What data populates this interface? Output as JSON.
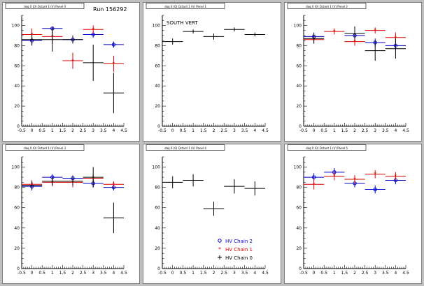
{
  "colors": {
    "hv_chain_2": "#0000cc",
    "hv_chain_1": "#dd0000",
    "hv_chain_0": "#000000",
    "pad_border": "#808080",
    "background": "#bfbfbf"
  },
  "run_label": "Run 156292",
  "legend": [
    {
      "label": "HV Chain 2",
      "marker": "circle",
      "color": "#0000cc"
    },
    {
      "label": "HV Chain 1",
      "marker": "star",
      "color": "#dd0000"
    },
    {
      "label": "HV Chain 0",
      "marker": "cross",
      "color": "#000000"
    }
  ],
  "chart_data": [
    {
      "type": "scatter",
      "title": "daq 0 (0) Octant 1 (V) Panel 0",
      "xlim": [
        -0.5,
        4.5
      ],
      "ylim": [
        0,
        110
      ],
      "xticks": [
        "-0.5",
        "0",
        "0.5",
        "1",
        "1.5",
        "2",
        "2.5",
        "3",
        "3.5",
        "4",
        "4.5"
      ],
      "yticks": [
        "0",
        "20",
        "40",
        "60",
        "80",
        "100"
      ],
      "annotation": "Run 156292",
      "series": [
        {
          "name": "HV Chain 2",
          "color": "#0000cc",
          "marker": "circle",
          "points": [
            {
              "x": 0,
              "y": 85,
              "err": 4
            },
            {
              "x": 1,
              "y": 97,
              "err": 2
            },
            {
              "x": 2,
              "y": 86,
              "err": 3
            },
            {
              "x": 3,
              "y": 91,
              "err": 3
            },
            {
              "x": 4,
              "y": 81,
              "err": 3
            }
          ]
        },
        {
          "name": "HV Chain 1",
          "color": "#dd0000",
          "marker": "star",
          "points": [
            {
              "x": 0,
              "y": 91,
              "err": 6
            },
            {
              "x": 1,
              "y": 89,
              "err": 7
            },
            {
              "x": 2,
              "y": 65,
              "err": 8
            },
            {
              "x": 3,
              "y": 96,
              "err": 4
            },
            {
              "x": 4,
              "y": 62,
              "err": 8
            }
          ]
        },
        {
          "name": "HV Chain 0",
          "color": "#000000",
          "marker": "cross",
          "points": [
            {
              "x": 0,
              "y": 86,
              "err": 6
            },
            {
              "x": 1,
              "y": 86,
              "err": 12
            },
            {
              "x": 2,
              "y": 86,
              "err": 4
            },
            {
              "x": 3,
              "y": 63,
              "err": 18
            },
            {
              "x": 4,
              "y": 33,
              "err": 20
            }
          ]
        }
      ]
    },
    {
      "type": "scatter",
      "title": "daq 0 (0) Octant 1 (V) Panel 1",
      "xlim": [
        -0.5,
        4.5
      ],
      "ylim": [
        0,
        110
      ],
      "xticks": [
        "-0.5",
        "0",
        "0.5",
        "1",
        "1.5",
        "2",
        "2.5",
        "3",
        "3.5",
        "4",
        "4.5"
      ],
      "yticks": [
        "0",
        "20",
        "40",
        "60",
        "80",
        "100"
      ],
      "annotation": "SOUTH VERT",
      "series": [
        {
          "name": "HV Chain 0",
          "color": "#000000",
          "marker": "cross",
          "points": [
            {
              "x": 0,
              "y": 84,
              "err": 3
            },
            {
              "x": 1,
              "y": 94,
              "err": 2
            },
            {
              "x": 2,
              "y": 89,
              "err": 3
            },
            {
              "x": 3,
              "y": 96,
              "err": 2
            },
            {
              "x": 4,
              "y": 91,
              "err": 2
            }
          ]
        }
      ]
    },
    {
      "type": "scatter",
      "title": "daq 0 (0) Octant 1 (V) Panel 2",
      "xlim": [
        -0.5,
        4.5
      ],
      "ylim": [
        0,
        110
      ],
      "xticks": [
        "-0.5",
        "0",
        "0.5",
        "1",
        "1.5",
        "2",
        "2.5",
        "3",
        "3.5",
        "4",
        "4.5"
      ],
      "yticks": [
        "0",
        "20",
        "40",
        "60",
        "80",
        "100"
      ],
      "series": [
        {
          "name": "HV Chain 2",
          "color": "#0000cc",
          "marker": "circle",
          "points": [
            {
              "x": 0,
              "y": 89,
              "err": 4
            },
            {
              "x": 2,
              "y": 90,
              "err": 5
            },
            {
              "x": 3,
              "y": 83,
              "err": 4
            },
            {
              "x": 4,
              "y": 80,
              "err": 5
            }
          ]
        },
        {
          "name": "HV Chain 1",
          "color": "#dd0000",
          "marker": "star",
          "points": [
            {
              "x": 0,
              "y": 86,
              "err": 4
            },
            {
              "x": 1,
              "y": 94,
              "err": 3
            },
            {
              "x": 2,
              "y": 84,
              "err": 4
            },
            {
              "x": 3,
              "y": 95,
              "err": 3
            },
            {
              "x": 4,
              "y": 88,
              "err": 5
            }
          ]
        },
        {
          "name": "HV Chain 0",
          "color": "#000000",
          "marker": "cross",
          "points": [
            {
              "x": 0,
              "y": 87,
              "err": 5
            },
            {
              "x": 2,
              "y": 92,
              "err": 7
            },
            {
              "x": 3,
              "y": 75,
              "err": 10
            },
            {
              "x": 4,
              "y": 77,
              "err": 10
            }
          ]
        }
      ]
    },
    {
      "type": "scatter",
      "title": "daq 0 (0) Octant 1 (V) Panel 3",
      "xlim": [
        -0.5,
        4.5
      ],
      "ylim": [
        0,
        110
      ],
      "xticks": [
        "-0.5",
        "0",
        "0.5",
        "1",
        "1.5",
        "2",
        "2.5",
        "3",
        "3.5",
        "4",
        "4.5"
      ],
      "yticks": [
        "0",
        "20",
        "40",
        "60",
        "80",
        "100"
      ],
      "series": [
        {
          "name": "HV Chain 2",
          "color": "#0000cc",
          "marker": "circle",
          "points": [
            {
              "x": 0,
              "y": 81,
              "err": 4
            },
            {
              "x": 1,
              "y": 90,
              "err": 3
            },
            {
              "x": 2,
              "y": 89,
              "err": 3
            },
            {
              "x": 3,
              "y": 84,
              "err": 4
            },
            {
              "x": 4,
              "y": 80,
              "err": 3
            }
          ]
        },
        {
          "name": "HV Chain 1",
          "color": "#dd0000",
          "marker": "star",
          "points": [
            {
              "x": 0,
              "y": 83,
              "err": 4
            },
            {
              "x": 1,
              "y": 85,
              "err": 4
            },
            {
              "x": 2,
              "y": 85,
              "err": 5
            },
            {
              "x": 3,
              "y": 89,
              "err": 4
            },
            {
              "x": 4,
              "y": 83,
              "err": 3
            }
          ]
        },
        {
          "name": "HV Chain 0",
          "color": "#000000",
          "marker": "cross",
          "points": [
            {
              "x": 0,
              "y": 82,
              "err": 4
            },
            {
              "x": 1,
              "y": 86,
              "err": 4
            },
            {
              "x": 2,
              "y": 86,
              "err": 4
            },
            {
              "x": 3,
              "y": 90,
              "err": 10
            },
            {
              "x": 4,
              "y": 50,
              "err": 15
            }
          ]
        }
      ]
    },
    {
      "type": "scatter",
      "title": "daq 0 (0) Octant 1 (V) Panel 4",
      "xlim": [
        -0.5,
        4.5
      ],
      "ylim": [
        0,
        110
      ],
      "xticks": [
        "-0.5",
        "0",
        "0.5",
        "1",
        "1.5",
        "2",
        "2.5",
        "3",
        "3.5",
        "4",
        "4.5"
      ],
      "yticks": [
        "0",
        "20",
        "40",
        "60",
        "80",
        "100"
      ],
      "legend_placement": "bottom-right",
      "series": [
        {
          "name": "HV Chain 0",
          "color": "#000000",
          "marker": "cross",
          "points": [
            {
              "x": 0,
              "y": 85,
              "err": 6
            },
            {
              "x": 1,
              "y": 87,
              "err": 6
            },
            {
              "x": 2,
              "y": 59,
              "err": 7
            },
            {
              "x": 3,
              "y": 81,
              "err": 7
            },
            {
              "x": 4,
              "y": 79,
              "err": 7
            }
          ]
        }
      ]
    },
    {
      "type": "scatter",
      "title": "daq 0 (0) Octant 1 (V) Panel 5",
      "xlim": [
        -0.5,
        4.5
      ],
      "ylim": [
        0,
        110
      ],
      "xticks": [
        "-0.5",
        "0",
        "0.5",
        "1",
        "1.5",
        "2",
        "2.5",
        "3",
        "3.5",
        "4",
        "4.5"
      ],
      "yticks": [
        "0",
        "20",
        "40",
        "60",
        "80",
        "100"
      ],
      "series": [
        {
          "name": "HV Chain 2",
          "color": "#0000cc",
          "marker": "circle",
          "points": [
            {
              "x": 0,
              "y": 90,
              "err": 4
            },
            {
              "x": 1,
              "y": 95,
              "err": 4
            },
            {
              "x": 2,
              "y": 84,
              "err": 4
            },
            {
              "x": 3,
              "y": 78,
              "err": 4
            },
            {
              "x": 4,
              "y": 87,
              "err": 4
            }
          ]
        },
        {
          "name": "HV Chain 1",
          "color": "#dd0000",
          "marker": "star",
          "points": [
            {
              "x": 0,
              "y": 83,
              "err": 5
            },
            {
              "x": 1,
              "y": 91,
              "err": 4
            },
            {
              "x": 2,
              "y": 88,
              "err": 4
            },
            {
              "x": 3,
              "y": 93,
              "err": 4
            },
            {
              "x": 4,
              "y": 91,
              "err": 4
            }
          ]
        }
      ]
    }
  ]
}
